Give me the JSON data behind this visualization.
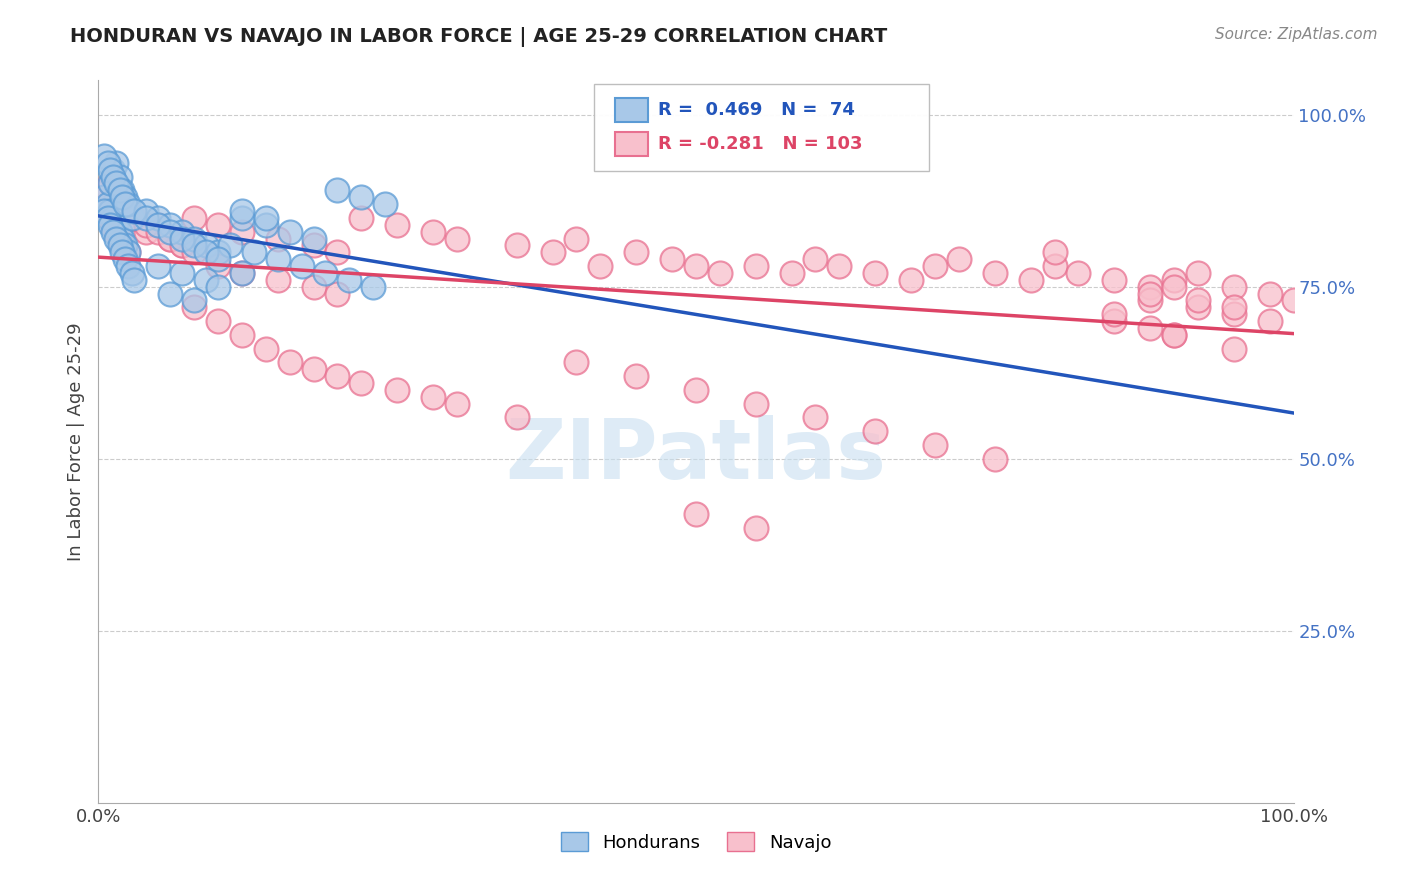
{
  "title": "HONDURAN VS NAVAJO IN LABOR FORCE | AGE 25-29 CORRELATION CHART",
  "source": "Source: ZipAtlas.com",
  "ylabel": "In Labor Force | Age 25-29",
  "x_min": 0.0,
  "x_max": 1.0,
  "y_min": 0.0,
  "y_max": 1.05,
  "honduran_R": 0.469,
  "honduran_N": 74,
  "navajo_R": -0.281,
  "navajo_N": 103,
  "blue_color": "#a8c8e8",
  "blue_edge_color": "#5b9bd5",
  "pink_color": "#f8c0cc",
  "pink_edge_color": "#e87090",
  "blue_line_color": "#2255bb",
  "pink_line_color": "#dd4466",
  "watermark_color": "#c8dff0",
  "legend_label_blue": "Hondurans",
  "legend_label_pink": "Navajo",
  "honduran_x": [
    0.005,
    0.008,
    0.01,
    0.012,
    0.015,
    0.018,
    0.02,
    0.022,
    0.025,
    0.028,
    0.01,
    0.012,
    0.015,
    0.018,
    0.02,
    0.022,
    0.025,
    0.005,
    0.008,
    0.01,
    0.012,
    0.015,
    0.018,
    0.02,
    0.022,
    0.025,
    0.028,
    0.03,
    0.005,
    0.008,
    0.01,
    0.012,
    0.015,
    0.018,
    0.02,
    0.022,
    0.04,
    0.05,
    0.06,
    0.07,
    0.08,
    0.09,
    0.1,
    0.12,
    0.14,
    0.16,
    0.18,
    0.2,
    0.22,
    0.24,
    0.05,
    0.07,
    0.09,
    0.11,
    0.13,
    0.15,
    0.17,
    0.19,
    0.21,
    0.23,
    0.03,
    0.04,
    0.05,
    0.06,
    0.07,
    0.08,
    0.09,
    0.1,
    0.12,
    0.14,
    0.06,
    0.08,
    0.1,
    0.12
  ],
  "honduran_y": [
    0.88,
    0.87,
    0.86,
    0.85,
    0.84,
    0.83,
    0.82,
    0.81,
    0.8,
    0.85,
    0.9,
    0.92,
    0.93,
    0.91,
    0.89,
    0.88,
    0.87,
    0.86,
    0.85,
    0.84,
    0.83,
    0.82,
    0.81,
    0.8,
    0.79,
    0.78,
    0.77,
    0.76,
    0.94,
    0.93,
    0.92,
    0.91,
    0.9,
    0.89,
    0.88,
    0.87,
    0.86,
    0.85,
    0.84,
    0.83,
    0.82,
    0.81,
    0.8,
    0.85,
    0.84,
    0.83,
    0.82,
    0.89,
    0.88,
    0.87,
    0.78,
    0.77,
    0.76,
    0.81,
    0.8,
    0.79,
    0.78,
    0.77,
    0.76,
    0.75,
    0.86,
    0.85,
    0.84,
    0.83,
    0.82,
    0.81,
    0.8,
    0.79,
    0.86,
    0.85,
    0.74,
    0.73,
    0.75,
    0.77
  ],
  "navajo_x": [
    0.005,
    0.008,
    0.01,
    0.012,
    0.015,
    0.018,
    0.02,
    0.025,
    0.03,
    0.04,
    0.05,
    0.06,
    0.07,
    0.08,
    0.1,
    0.12,
    0.15,
    0.18,
    0.2,
    0.22,
    0.25,
    0.28,
    0.3,
    0.35,
    0.38,
    0.4,
    0.42,
    0.45,
    0.48,
    0.5,
    0.52,
    0.55,
    0.58,
    0.6,
    0.62,
    0.65,
    0.68,
    0.7,
    0.72,
    0.75,
    0.78,
    0.8,
    0.82,
    0.85,
    0.88,
    0.9,
    0.92,
    0.95,
    0.98,
    1.0,
    0.008,
    0.01,
    0.015,
    0.02,
    0.025,
    0.03,
    0.04,
    0.05,
    0.06,
    0.07,
    0.08,
    0.1,
    0.12,
    0.15,
    0.18,
    0.2,
    0.08,
    0.1,
    0.12,
    0.14,
    0.16,
    0.18,
    0.2,
    0.22,
    0.25,
    0.28,
    0.3,
    0.35,
    0.4,
    0.45,
    0.5,
    0.55,
    0.6,
    0.65,
    0.7,
    0.75,
    0.8,
    0.85,
    0.9,
    0.95,
    0.88,
    0.92,
    0.95,
    0.98,
    0.88,
    0.9,
    0.92,
    0.95,
    0.85,
    0.88,
    0.9,
    0.5,
    0.55
  ],
  "navajo_y": [
    0.88,
    0.86,
    0.85,
    0.84,
    0.83,
    0.82,
    0.81,
    0.8,
    0.85,
    0.83,
    0.84,
    0.82,
    0.81,
    0.85,
    0.84,
    0.83,
    0.82,
    0.81,
    0.8,
    0.85,
    0.84,
    0.83,
    0.82,
    0.81,
    0.8,
    0.82,
    0.78,
    0.8,
    0.79,
    0.78,
    0.77,
    0.78,
    0.77,
    0.79,
    0.78,
    0.77,
    0.76,
    0.78,
    0.79,
    0.77,
    0.76,
    0.78,
    0.77,
    0.76,
    0.75,
    0.76,
    0.77,
    0.75,
    0.74,
    0.73,
    0.89,
    0.9,
    0.88,
    0.87,
    0.86,
    0.85,
    0.84,
    0.83,
    0.82,
    0.81,
    0.8,
    0.78,
    0.77,
    0.76,
    0.75,
    0.74,
    0.72,
    0.7,
    0.68,
    0.66,
    0.64,
    0.63,
    0.62,
    0.61,
    0.6,
    0.59,
    0.58,
    0.56,
    0.64,
    0.62,
    0.6,
    0.58,
    0.56,
    0.54,
    0.52,
    0.5,
    0.8,
    0.7,
    0.68,
    0.66,
    0.73,
    0.72,
    0.71,
    0.7,
    0.74,
    0.75,
    0.73,
    0.72,
    0.71,
    0.69,
    0.68,
    0.42,
    0.4
  ]
}
